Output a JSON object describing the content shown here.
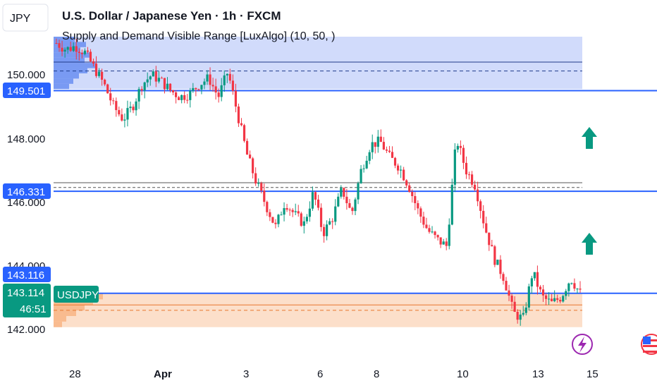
{
  "header": {
    "symbol_button": "JPY",
    "title": "U.S. Dollar / Japanese Yen · 1h · FXCM",
    "indicator": "Supply and Demand Visible Range [LuxAlgo] (10, 50, )"
  },
  "colors": {
    "up": "#089981",
    "down": "#f23645",
    "supply_zone": "#c9d5fa",
    "demand_zone": "#fcdcc4",
    "level_line": "#2962ff",
    "arrow": "#089981",
    "supply_profile": "#5b84f0",
    "demand_profile": "#f7b27f"
  },
  "chart_data": {
    "type": "candlestick",
    "symbol": "USDJPY",
    "interval": "1h",
    "y_ticks": [
      "150.000",
      "148.000",
      "146.000",
      "144.000",
      "142.000"
    ],
    "x_ticks": [
      "28",
      "Apr",
      "3",
      "6",
      "8",
      "10",
      "13",
      "15"
    ],
    "ylim": [
      141.6,
      151.8
    ],
    "price_labels": {
      "level_high": "149.501",
      "level_mid": "146.331",
      "level_low": "143.116",
      "last_price": "143.114",
      "countdown": "46:51",
      "symbol_tag": "USDJPY"
    },
    "levels": [
      149.501,
      146.331,
      143.116
    ],
    "supply_zone": {
      "top": 151.2,
      "bottom": 149.55,
      "avg": 150.4,
      "wavg": 150.12
    },
    "equilibrium": {
      "avg": 146.6,
      "wavg": 146.45
    },
    "demand_zone": {
      "top": 143.1,
      "bottom": 142.05,
      "avg": 142.75,
      "wavg": 142.58
    },
    "price_path": [
      [
        "Mar 27",
        151.0
      ],
      [
        "Mar 27",
        150.8
      ],
      [
        "Mar 28",
        150.9
      ],
      [
        "Mar 28",
        150.7
      ],
      [
        "Mar 28",
        150.2
      ],
      [
        "Mar 29",
        149.7
      ],
      [
        "Mar 29",
        149.0
      ],
      [
        "Mar 30",
        148.6
      ],
      [
        "Mar 30",
        149.0
      ],
      [
        "Mar 31",
        149.7
      ],
      [
        "Mar 31",
        150.0
      ],
      [
        "Apr 1",
        149.8
      ],
      [
        "Apr 1",
        149.5
      ],
      [
        "Apr 1",
        149.3
      ],
      [
        "Apr 2",
        149.4
      ],
      [
        "Apr 2",
        149.7
      ],
      [
        "Apr 2",
        149.9
      ],
      [
        "Apr 2",
        149.3
      ],
      [
        "Apr 2",
        150.1
      ],
      [
        "Apr 3",
        148.8
      ],
      [
        "Apr 3",
        147.5
      ],
      [
        "Apr 3",
        146.6
      ],
      [
        "Apr 4",
        145.9
      ],
      [
        "Apr 4",
        145.2
      ],
      [
        "Apr 4",
        146.0
      ],
      [
        "Apr 5",
        145.6
      ],
      [
        "Apr 5",
        145.3
      ],
      [
        "Apr 6",
        146.3
      ],
      [
        "Apr 6",
        145.0
      ],
      [
        "Apr 6",
        145.5
      ],
      [
        "Apr 7",
        146.4
      ],
      [
        "Apr 7",
        145.6
      ],
      [
        "Apr 7",
        147.0
      ],
      [
        "Apr 8",
        147.8
      ],
      [
        "Apr 8",
        147.9
      ],
      [
        "Apr 8",
        147.4
      ],
      [
        "Apr 9",
        147.1
      ],
      [
        "Apr 9",
        146.5
      ],
      [
        "Apr 9",
        145.7
      ],
      [
        "Apr 9",
        145.1
      ],
      [
        "Apr 10",
        144.8
      ],
      [
        "Apr 10",
        144.6
      ],
      [
        "Apr 10",
        148.0
      ],
      [
        "Apr 10",
        147.0
      ],
      [
        "Apr 11",
        146.5
      ],
      [
        "Apr 11",
        145.2
      ],
      [
        "Apr 11",
        144.2
      ],
      [
        "Apr 12",
        143.6
      ],
      [
        "Apr 12",
        142.5
      ],
      [
        "Apr 13",
        142.3
      ],
      [
        "Apr 13",
        143.8
      ],
      [
        "Apr 13",
        143.0
      ],
      [
        "Apr 14",
        142.8
      ],
      [
        "Apr 14",
        143.0
      ],
      [
        "Apr 14",
        143.6
      ],
      [
        "Apr 14",
        143.114
      ]
    ]
  }
}
